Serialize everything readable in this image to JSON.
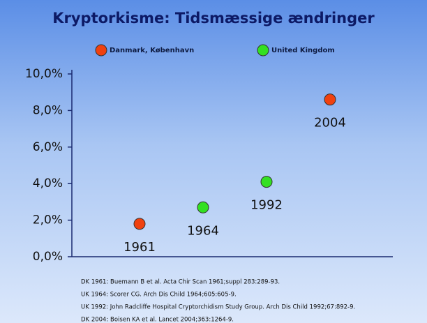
{
  "chart_data": {
    "type": "scatter",
    "title": "Kryptorkisme: Tidsmæssige ændringer",
    "categories": [
      "1961",
      "1964",
      "1992",
      "2004"
    ],
    "series": [
      {
        "name": "Danmark, København",
        "color": "#f0410f",
        "values": [
          1.8,
          null,
          null,
          8.6
        ]
      },
      {
        "name": "United Kingdom",
        "color": "#33e022",
        "values": [
          null,
          2.7,
          4.1,
          null
        ]
      }
    ],
    "ylim": [
      0,
      10
    ],
    "yticks": [
      {
        "value": 0,
        "label": "0,0%"
      },
      {
        "value": 2,
        "label": "2,0%"
      },
      {
        "value": 4,
        "label": "4,0%"
      },
      {
        "value": 6,
        "label": "6,0%"
      },
      {
        "value": 8,
        "label": "8,0%"
      },
      {
        "value": 10,
        "label": "10,0%"
      }
    ],
    "footnotes": [
      "DK 1961: Buemann B et al. Acta Chir Scan 1961;suppl 283:289-93.",
      "UK 1964: Scorer CG. Arch Dis Child 1964;605:605-9.",
      "UK 1992: John Radcliffe Hospital Cryptorchidism Study Group. Arch Dis Child 1992;67:892-9.",
      "DK 2004: Boisen KA et al. Lancet 2004;363:1264-9."
    ]
  }
}
